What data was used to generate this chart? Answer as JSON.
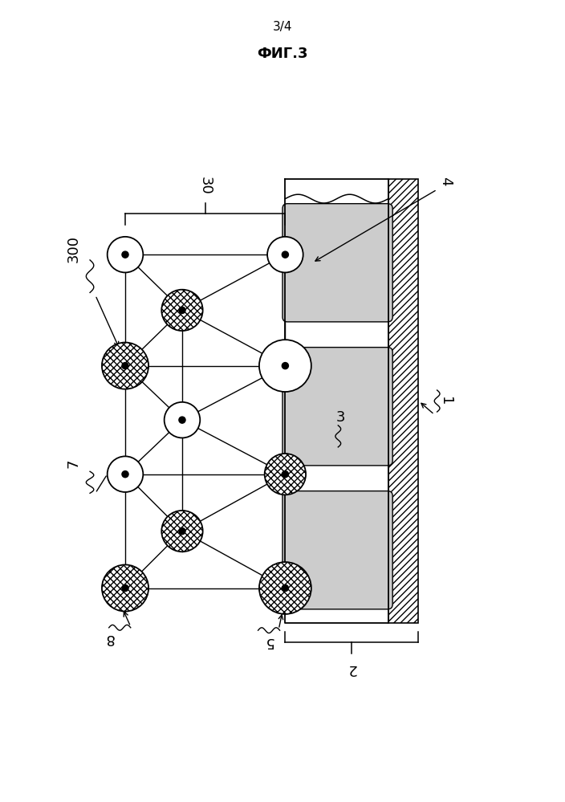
{
  "title": "ФИГ.3",
  "page_label": "3/4",
  "background_color": "#ffffff",
  "fig_width": 7.04,
  "fig_height": 9.99,
  "label_30": "30",
  "label_300": "300",
  "label_1": "1",
  "label_2": "2",
  "label_3": "3",
  "label_4": "4",
  "label_5": "5",
  "label_7": "7",
  "label_8": "8",
  "slot_fill_color": "#cccccc",
  "line_color": "#000000"
}
